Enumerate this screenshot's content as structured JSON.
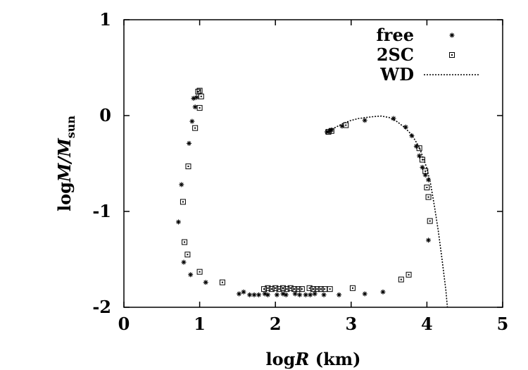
{
  "chart_data": {
    "type": "scatter",
    "xlabel_main": "log",
    "xlabel_var": "R",
    "xlabel_unit": " (km)",
    "ylabel_main": "log",
    "ylabel_var": "M/M",
    "ylabel_sub": "sun",
    "xlim": [
      0,
      5
    ],
    "ylim": [
      -2,
      1
    ],
    "xticks": [
      0,
      1,
      2,
      3,
      4,
      5
    ],
    "yticks": [
      -2,
      -1,
      0,
      1
    ],
    "xtick_labels": [
      "0",
      "1",
      "2",
      "3",
      "4",
      "5"
    ],
    "ytick_labels": [
      "-2",
      "-1",
      "0",
      "1"
    ],
    "legend_position": "top-right",
    "grid": false,
    "series": [
      {
        "name": "free",
        "marker": "asterisk",
        "points": [
          [
            0.72,
            -1.11
          ],
          [
            0.76,
            -0.72
          ],
          [
            0.79,
            -1.53
          ],
          [
            0.86,
            -0.29
          ],
          [
            0.9,
            -0.06
          ],
          [
            0.92,
            0.18
          ],
          [
            0.94,
            0.09
          ],
          [
            0.96,
            0.19
          ],
          [
            0.88,
            -1.66
          ],
          [
            1.08,
            -1.74
          ],
          [
            1.52,
            -1.86
          ],
          [
            1.58,
            -1.84
          ],
          [
            1.66,
            -1.87
          ],
          [
            1.72,
            -1.87
          ],
          [
            1.78,
            -1.87
          ],
          [
            1.86,
            -1.86
          ],
          [
            1.9,
            -1.87
          ],
          [
            2.02,
            -1.87
          ],
          [
            2.1,
            -1.86
          ],
          [
            2.14,
            -1.87
          ],
          [
            2.26,
            -1.86
          ],
          [
            2.32,
            -1.87
          ],
          [
            2.4,
            -1.87
          ],
          [
            2.46,
            -1.87
          ],
          [
            2.52,
            -1.86
          ],
          [
            2.64,
            -1.87
          ],
          [
            2.84,
            -1.87
          ],
          [
            3.18,
            -1.86
          ],
          [
            3.42,
            -1.84
          ],
          [
            2.68,
            -0.17
          ],
          [
            2.72,
            -0.16
          ],
          [
            2.74,
            -0.15
          ],
          [
            2.88,
            -0.11
          ],
          [
            3.18,
            -0.05
          ],
          [
            3.56,
            -0.03
          ],
          [
            3.72,
            -0.12
          ],
          [
            3.8,
            -0.21
          ],
          [
            3.86,
            -0.32
          ],
          [
            3.9,
            -0.42
          ],
          [
            3.94,
            -0.54
          ],
          [
            3.98,
            -0.62
          ],
          [
            4.02,
            -0.67
          ],
          [
            4.02,
            -1.3
          ]
        ]
      },
      {
        "name": "2SC",
        "marker": "square",
        "points": [
          [
            0.78,
            -0.9
          ],
          [
            0.8,
            -1.32
          ],
          [
            0.84,
            -1.45
          ],
          [
            0.85,
            -0.53
          ],
          [
            0.94,
            -0.13
          ],
          [
            0.98,
            0.25
          ],
          [
            1.0,
            0.08
          ],
          [
            1.02,
            0.2
          ],
          [
            1.0,
            0.26
          ],
          [
            1.0,
            -1.63
          ],
          [
            1.3,
            -1.74
          ],
          [
            1.85,
            -1.81
          ],
          [
            1.9,
            -1.8
          ],
          [
            1.95,
            -1.81
          ],
          [
            2.0,
            -1.8
          ],
          [
            2.05,
            -1.81
          ],
          [
            2.1,
            -1.8
          ],
          [
            2.15,
            -1.81
          ],
          [
            2.2,
            -1.8
          ],
          [
            2.25,
            -1.81
          ],
          [
            2.3,
            -1.81
          ],
          [
            2.35,
            -1.81
          ],
          [
            2.45,
            -1.8
          ],
          [
            2.5,
            -1.81
          ],
          [
            2.55,
            -1.81
          ],
          [
            2.6,
            -1.81
          ],
          [
            2.65,
            -1.81
          ],
          [
            2.72,
            -1.81
          ],
          [
            3.02,
            -1.8
          ],
          [
            3.66,
            -1.71
          ],
          [
            3.76,
            -1.66
          ],
          [
            2.7,
            -0.17
          ],
          [
            2.74,
            -0.16
          ],
          [
            2.93,
            -0.1
          ],
          [
            3.9,
            -0.34
          ],
          [
            3.94,
            -0.46
          ],
          [
            3.98,
            -0.58
          ],
          [
            4.0,
            -0.75
          ],
          [
            4.02,
            -0.85
          ],
          [
            4.04,
            -1.1
          ]
        ]
      },
      {
        "name": "WD",
        "marker": "dashed-line",
        "curve": [
          [
            2.68,
            -0.17
          ],
          [
            2.8,
            -0.12
          ],
          [
            2.9,
            -0.08
          ],
          [
            3.0,
            -0.05
          ],
          [
            3.1,
            -0.03
          ],
          [
            3.2,
            -0.02
          ],
          [
            3.3,
            -0.01
          ],
          [
            3.4,
            -0.005
          ],
          [
            3.5,
            -0.02
          ],
          [
            3.6,
            -0.06
          ],
          [
            3.7,
            -0.12
          ],
          [
            3.8,
            -0.2
          ],
          [
            3.9,
            -0.33
          ],
          [
            4.0,
            -0.55
          ],
          [
            4.05,
            -0.72
          ],
          [
            4.1,
            -0.95
          ],
          [
            4.15,
            -1.2
          ],
          [
            4.2,
            -1.5
          ],
          [
            4.25,
            -1.82
          ],
          [
            4.27,
            -2.0
          ]
        ]
      }
    ]
  }
}
